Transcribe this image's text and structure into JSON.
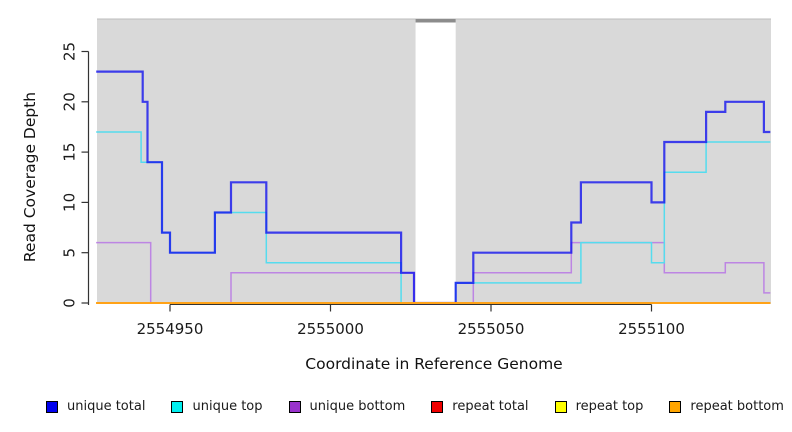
{
  "chart_data": {
    "type": "line",
    "subtype": "step-coverage",
    "title": "",
    "xlabel": "Coordinate in Reference Genome",
    "ylabel": "Read Coverage Depth",
    "x_domain": [
      2554927,
      2555137
    ],
    "ylim": [
      0,
      28
    ],
    "x_ticks": [
      2554950,
      2555000,
      2555050,
      2555100
    ],
    "y_ticks": [
      0,
      5,
      10,
      15,
      20,
      25
    ],
    "grid": false,
    "plot_background": "#d9d9d9",
    "plot_border_top": "#bdbdbd",
    "axis_color": "#333333",
    "gap_region": {
      "start": 2555026.5,
      "end": 2555039,
      "fill": "#ffffff",
      "cap_color": "#8c8c8c"
    },
    "series": [
      {
        "key": "unique-total",
        "name": "unique total",
        "color": "#0f0fee",
        "width": 2.2,
        "opacity": 0.78,
        "steps": [
          [
            2554927,
            23
          ],
          [
            2554941.5,
            20
          ],
          [
            2554943,
            14
          ],
          [
            2554947.5,
            7
          ],
          [
            2554950,
            5
          ],
          [
            2554964,
            9
          ],
          [
            2554969,
            12
          ],
          [
            2554980,
            7
          ],
          [
            2555022,
            3
          ],
          [
            2555026,
            0
          ],
          [
            2555039,
            2
          ],
          [
            2555044.5,
            5
          ],
          [
            2555075,
            8
          ],
          [
            2555078,
            12
          ],
          [
            2555100,
            10
          ],
          [
            2555104,
            16
          ],
          [
            2555117,
            19
          ],
          [
            2555123,
            20
          ],
          [
            2555135,
            17
          ]
        ]
      },
      {
        "key": "unique-top",
        "name": "unique top",
        "color": "#55dcee",
        "width": 1.5,
        "opacity": 1,
        "steps": [
          [
            2554927,
            17
          ],
          [
            2554941,
            14
          ],
          [
            2554947.5,
            7
          ],
          [
            2554950,
            5
          ],
          [
            2554964,
            9
          ],
          [
            2554980,
            4
          ],
          [
            2555022,
            0
          ],
          [
            2555039,
            2
          ],
          [
            2555078,
            6
          ],
          [
            2555100,
            4
          ],
          [
            2555104,
            13
          ],
          [
            2555117,
            16
          ]
        ]
      },
      {
        "key": "unique-bottom",
        "name": "unique bottom",
        "color": "#bd85e3",
        "width": 1.5,
        "opacity": 1,
        "steps": [
          [
            2554927,
            6
          ],
          [
            2554944,
            0
          ],
          [
            2554969,
            3
          ],
          [
            2555026,
            0
          ],
          [
            2555044.5,
            3
          ],
          [
            2555075,
            6
          ],
          [
            2555104,
            3
          ],
          [
            2555123,
            4
          ],
          [
            2555135,
            1
          ]
        ]
      },
      {
        "key": "repeat-total",
        "name": "repeat total",
        "color": "#e8112d",
        "width": 1.5,
        "opacity": 1,
        "steps": [
          [
            2554927,
            0
          ]
        ]
      },
      {
        "key": "repeat-top",
        "name": "repeat top",
        "color": "#f5ec00",
        "width": 1.5,
        "opacity": 1,
        "steps": [
          [
            2554927,
            0
          ]
        ]
      },
      {
        "key": "repeat-bottom",
        "name": "repeat bottom",
        "color": "#ffa217",
        "width": 2,
        "opacity": 1,
        "steps": [
          [
            2554927,
            0
          ]
        ]
      }
    ],
    "legend_position": "bottom",
    "legend": [
      {
        "key": "unique-total",
        "label": "unique total",
        "color": "#0000ee"
      },
      {
        "key": "unique-top",
        "label": "unique top",
        "color": "#00eeee"
      },
      {
        "key": "unique-bottom",
        "label": "unique bottom",
        "color": "#9932cc"
      },
      {
        "key": "repeat-total",
        "label": "repeat total",
        "color": "#ee0000"
      },
      {
        "key": "repeat-top",
        "label": "repeat top",
        "color": "#ffff00"
      },
      {
        "key": "repeat-bottom",
        "label": "repeat bottom",
        "color": "#ffa500"
      }
    ]
  }
}
